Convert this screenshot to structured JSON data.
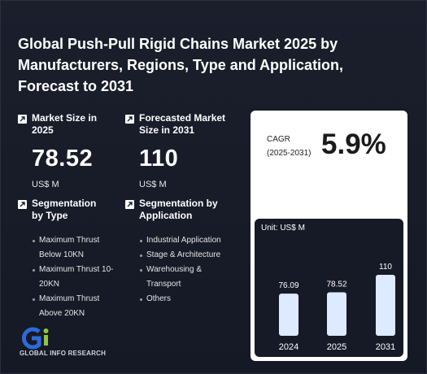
{
  "title": "Global Push-Pull Rigid Chains Market 2025 by Manufacturers, Regions, Type and Application, Forecast to 2031",
  "market_size": {
    "label": "Market Size in 2025",
    "value": "78.52",
    "unit": "US$ M"
  },
  "forecast": {
    "label": "Forecasted Market Size in 2031",
    "value": "110",
    "unit": "US$ M"
  },
  "seg_type": {
    "label": "Segmentation by Type",
    "items": [
      "Maximum Thrust Below 10KN",
      "Maximum Thrust 10-20KN",
      "Maximum Thrust Above 20KN"
    ]
  },
  "seg_app": {
    "label": "Segmentation by Application",
    "items": [
      "Industrial Application",
      "Stage & Architecture",
      "Warehousing & Transport",
      "Others"
    ]
  },
  "cagr": {
    "label_line1": "CAGR",
    "label_line2": "(2025-2031)",
    "value": "5.9%"
  },
  "chart_data": {
    "type": "bar",
    "unit_label": "Unit: US$ M",
    "categories": [
      "2024",
      "2025",
      "2031"
    ],
    "values": [
      76.09,
      78.52,
      110
    ],
    "value_labels": [
      "76.09",
      "78.52",
      "110"
    ],
    "bar_color": "#ddeaff"
  },
  "logo": {
    "mark": "Gi",
    "text": "GLOBAL INFO RESEARCH"
  },
  "colors": {
    "background": "#181c28",
    "card": "#ffffff",
    "logo_blue": "#2d6bd6",
    "logo_green": "#8cc63f"
  }
}
